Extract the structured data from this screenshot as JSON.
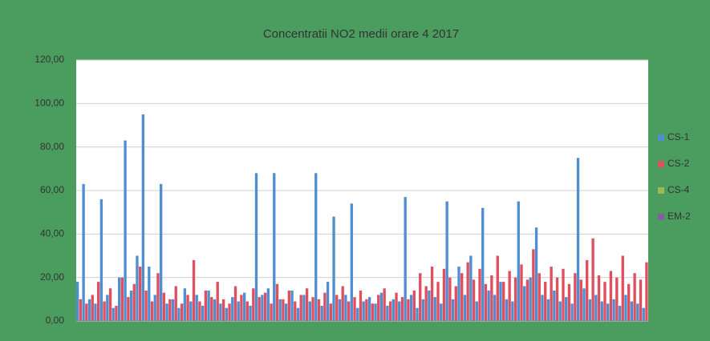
{
  "chart_data": {
    "type": "bar",
    "title": "Concentratii NO2 medii orare  4 2017",
    "categories": [
      null,
      null,
      null,
      null,
      null,
      null,
      null,
      null,
      null,
      null,
      null,
      null,
      null,
      null,
      null,
      null,
      null,
      null,
      null,
      null,
      null,
      null,
      null,
      null,
      null,
      null,
      null,
      null,
      null,
      null,
      null,
      null,
      null,
      null,
      null,
      null,
      null,
      null,
      null,
      null,
      null,
      null,
      null,
      null,
      null,
      null,
      null,
      null,
      null,
      null,
      null,
      null,
      null,
      null,
      null,
      null,
      null,
      null,
      null,
      null,
      null,
      null,
      null,
      null,
      null,
      null,
      null,
      null,
      null,
      null,
      null,
      null,
      null,
      null,
      null,
      null,
      null,
      null,
      null,
      null,
      null,
      null,
      null,
      null,
      null,
      null,
      null,
      null,
      null,
      null,
      null,
      null,
      null,
      null,
      null,
      null
    ],
    "series": [
      {
        "name": "CS-1",
        "color": "#4f8fd0",
        "values": [
          18,
          63,
          10,
          8,
          56,
          12,
          6,
          20,
          83,
          14,
          30,
          95,
          25,
          12,
          63,
          8,
          10,
          6,
          15,
          9,
          12,
          7,
          14,
          10,
          8,
          6,
          11,
          9,
          13,
          7,
          68,
          12,
          15,
          68,
          10,
          8,
          14,
          6,
          12,
          9,
          68,
          7,
          18,
          48,
          10,
          12,
          54,
          6,
          9,
          11,
          8,
          13,
          7,
          10,
          9,
          57,
          12,
          6,
          10,
          14,
          11,
          8,
          55,
          10,
          25,
          12,
          30,
          9,
          52,
          14,
          12,
          18,
          10,
          9,
          55,
          16,
          20,
          43,
          12,
          10,
          14,
          9,
          11,
          8,
          75,
          15,
          10,
          12,
          9,
          8,
          10,
          7,
          12,
          9,
          8,
          6
        ]
      },
      {
        "name": "CS-2",
        "color": "#e04f5f",
        "values": [
          10,
          8,
          12,
          18,
          9,
          15,
          7,
          20,
          11,
          17,
          25,
          14,
          9,
          22,
          13,
          10,
          16,
          8,
          12,
          28,
          9,
          14,
          11,
          18,
          10,
          8,
          16,
          12,
          9,
          15,
          11,
          13,
          8,
          17,
          10,
          14,
          9,
          12,
          15,
          11,
          10,
          13,
          8,
          12,
          16,
          9,
          11,
          14,
          10,
          8,
          12,
          15,
          9,
          13,
          11,
          10,
          14,
          22,
          16,
          25,
          18,
          24,
          20,
          16,
          22,
          27,
          19,
          24,
          17,
          21,
          30,
          18,
          23,
          20,
          26,
          19,
          33,
          22,
          18,
          25,
          20,
          24,
          17,
          22,
          19,
          28,
          38,
          21,
          18,
          23,
          20,
          30,
          17,
          22,
          19,
          27
        ]
      },
      {
        "name": "CS-4",
        "color": "#9bbb59",
        "values": [
          null,
          null,
          null,
          null,
          null,
          null,
          null,
          null,
          null,
          null,
          null,
          null,
          null,
          null,
          null,
          null,
          null,
          null,
          null,
          null,
          null,
          null,
          null,
          null,
          null,
          null,
          null,
          null,
          null,
          null,
          null,
          null,
          null,
          null,
          null,
          null,
          null,
          null,
          null,
          null,
          null,
          null,
          null,
          null,
          null,
          null,
          null,
          null,
          null,
          null,
          null,
          null,
          null,
          null,
          null,
          null,
          null,
          null,
          null,
          null,
          null,
          null,
          null,
          null,
          null,
          null,
          null,
          null,
          null,
          null,
          null,
          null,
          null,
          null,
          null,
          null,
          null,
          null,
          null,
          null,
          null,
          null,
          null,
          null,
          null,
          null,
          null,
          null,
          null,
          null,
          null,
          null,
          null,
          null,
          null,
          null
        ]
      },
      {
        "name": "EM-2",
        "color": "#8064a2",
        "values": [
          null,
          null,
          null,
          null,
          null,
          null,
          null,
          null,
          null,
          null,
          null,
          null,
          null,
          null,
          null,
          null,
          null,
          null,
          null,
          null,
          null,
          null,
          null,
          null,
          null,
          null,
          null,
          null,
          null,
          null,
          null,
          null,
          null,
          null,
          null,
          null,
          null,
          null,
          null,
          null,
          null,
          null,
          null,
          null,
          null,
          null,
          null,
          null,
          null,
          null,
          null,
          null,
          null,
          null,
          null,
          null,
          null,
          null,
          null,
          null,
          null,
          null,
          null,
          null,
          null,
          null,
          null,
          null,
          null,
          null,
          null,
          null,
          null,
          null,
          null,
          null,
          null,
          null,
          null,
          null,
          null,
          null,
          null,
          null,
          null,
          null,
          null,
          null,
          null,
          null,
          null,
          null,
          null,
          null,
          null,
          null
        ]
      }
    ],
    "ylim": [
      0,
      120
    ],
    "yticks": [
      {
        "value": 0,
        "label": "0,00"
      },
      {
        "value": 20,
        "label": "20,00"
      },
      {
        "value": 40,
        "label": "40,00"
      },
      {
        "value": 60,
        "label": "60,00"
      },
      {
        "value": 80,
        "label": "80,00"
      },
      {
        "value": 100,
        "label": "100,00"
      },
      {
        "value": 120,
        "label": "120,00"
      }
    ],
    "grid": true,
    "legend": "right"
  }
}
